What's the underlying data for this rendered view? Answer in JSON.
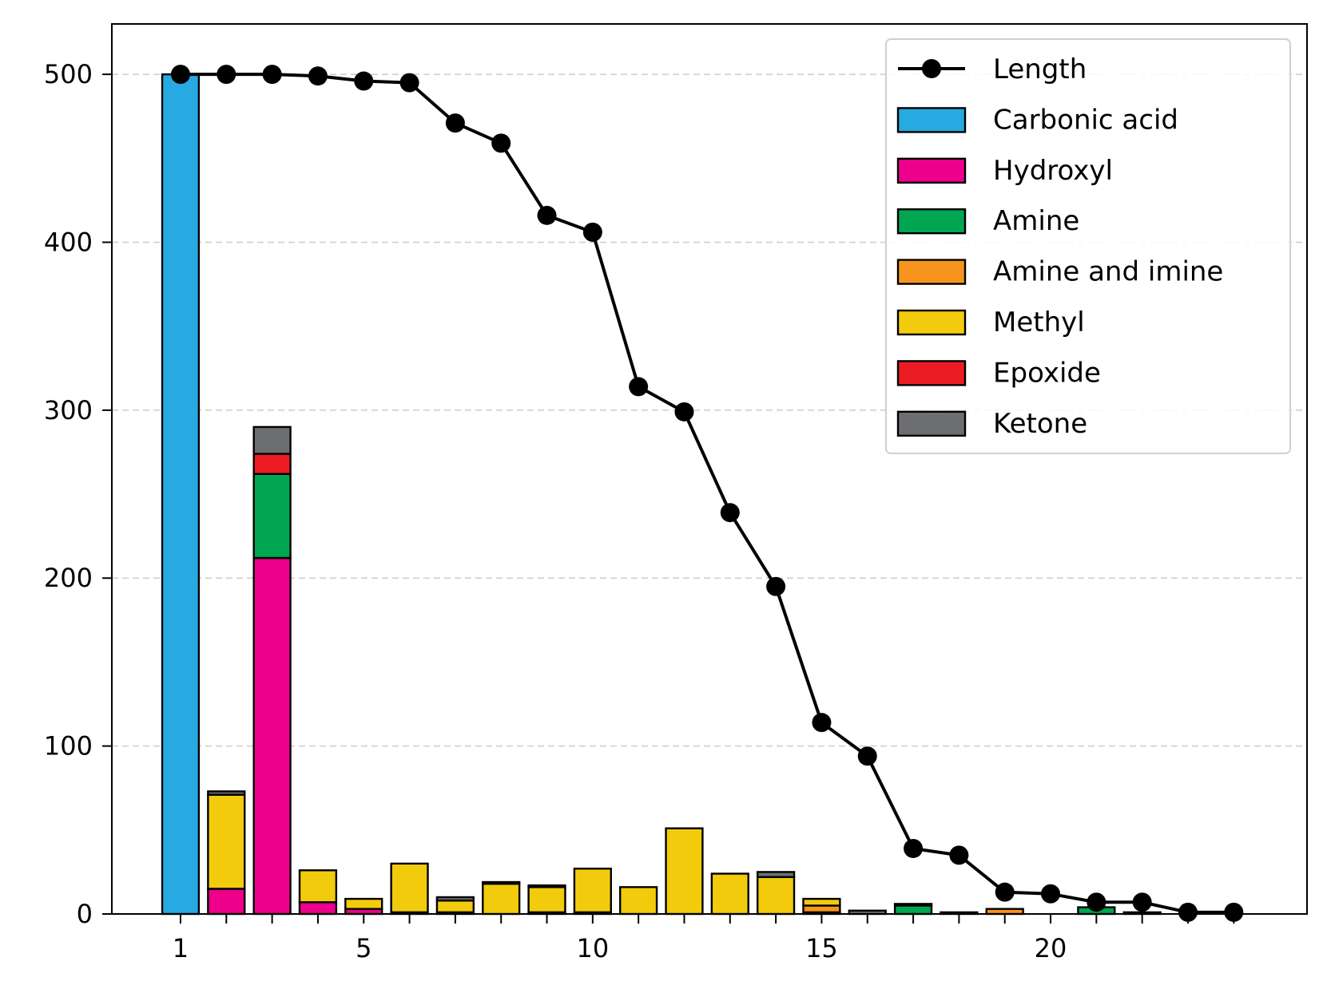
{
  "chart_data": {
    "type": "bar",
    "stacked": true,
    "x": [
      1,
      2,
      3,
      4,
      5,
      6,
      7,
      8,
      9,
      10,
      11,
      12,
      13,
      14,
      15,
      16,
      17,
      18,
      19,
      20,
      21,
      22,
      23,
      24
    ],
    "xticks": [
      1,
      5,
      10,
      15,
      20
    ],
    "yticks": [
      0,
      100,
      200,
      300,
      400,
      500
    ],
    "xlim": [
      -0.5,
      25.6
    ],
    "ylim": [
      0,
      530
    ],
    "grid": "y-dashed",
    "legend_position": "top-right",
    "series": [
      {
        "name": "Carbonic acid",
        "color": "#27a9e1",
        "values": [
          500,
          0,
          0,
          0,
          0,
          0,
          0,
          0,
          0,
          0,
          0,
          0,
          0,
          0,
          0,
          0,
          0,
          0,
          0,
          0,
          0,
          0,
          0,
          0
        ]
      },
      {
        "name": "Hydroxyl",
        "color": "#ec008c",
        "values": [
          0,
          15,
          212,
          7,
          3,
          1,
          1,
          0,
          1,
          1,
          0,
          0,
          0,
          0,
          1,
          0,
          0,
          0,
          0,
          0,
          0,
          0,
          0,
          0
        ]
      },
      {
        "name": "Amine",
        "color": "#00a651",
        "values": [
          0,
          0,
          50,
          0,
          0,
          0,
          0,
          0,
          0,
          0,
          0,
          0,
          0,
          0,
          0,
          0,
          5,
          0,
          0,
          0,
          4,
          0,
          0,
          0
        ]
      },
      {
        "name": "Amine and imine",
        "color": "#f7941d",
        "values": [
          0,
          0,
          0,
          0,
          0,
          0,
          0,
          0,
          0,
          0,
          0,
          0,
          0,
          0,
          4,
          0,
          0,
          0,
          3,
          0,
          0,
          0,
          0,
          0
        ]
      },
      {
        "name": "Methyl",
        "color": "#f2cb0c",
        "values": [
          0,
          56,
          0,
          19,
          6,
          29,
          7,
          18,
          15,
          26,
          16,
          51,
          24,
          22,
          4,
          0,
          0,
          0,
          0,
          0,
          0,
          0,
          0,
          0
        ]
      },
      {
        "name": "Epoxide",
        "color": "#ed1c24",
        "values": [
          0,
          0,
          12,
          0,
          0,
          0,
          0,
          0,
          0,
          0,
          0,
          0,
          0,
          0,
          0,
          0,
          0,
          0,
          0,
          0,
          0,
          0,
          0,
          0
        ]
      },
      {
        "name": "Ketone",
        "color": "#6d6e71",
        "values": [
          0,
          2,
          16,
          0,
          0,
          0,
          2,
          1,
          1,
          0,
          0,
          0,
          0,
          3,
          0,
          2,
          1,
          1,
          0,
          0,
          0,
          1,
          0,
          0
        ]
      }
    ],
    "line": {
      "name": "Length",
      "color": "#000000",
      "values": [
        500,
        500,
        500,
        499,
        496,
        495,
        471,
        459,
        416,
        406,
        314,
        299,
        239,
        195,
        114,
        94,
        39,
        35,
        13,
        12,
        7,
        7,
        1,
        1
      ]
    }
  }
}
